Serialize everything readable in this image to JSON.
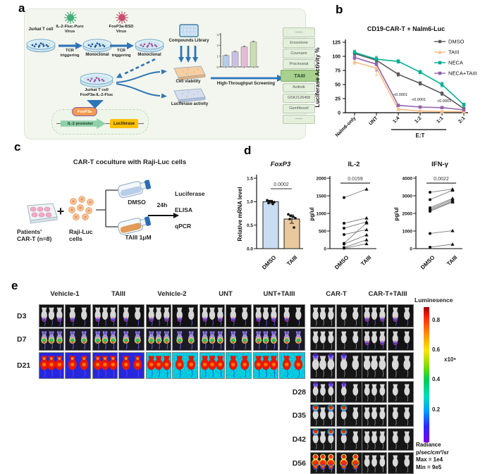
{
  "panel_labels": {
    "a": "a",
    "b": "b",
    "c": "c",
    "d": "d",
    "e": "e"
  },
  "panel_a": {
    "jurkat_label": "Jurkat T cell",
    "virus1_line1": "IL-2-Fluc-Puro",
    "virus1_line2": "Virus",
    "tcr_line1": "TCR",
    "tcr_line2": "triggering",
    "mono_label": "Monoclonal",
    "virus2_line1": "FoxP3a-BSD",
    "virus2_line2": "Virus",
    "cell2_line1": "Jurkat T cell",
    "cell2_line2": "FoxP3a-IL-2-Fluc",
    "construct_foxp3a": "FoxP3a",
    "construct_promoter": "IL-2 promoter",
    "construct_reporter": "Luciferase",
    "library_label": "Compounds Library",
    "viability_label": "Cell viability",
    "luciferase_label": "Luciferase activity",
    "hts_label": "High-Throughput Screening",
    "compound_list": [
      "——",
      "Enoxolone",
      "Coumarin",
      "Pracinostat",
      "TAIII",
      "Axitinib",
      "GSK2126458",
      "Gemfibrozil",
      "——"
    ],
    "highlighted_compound": "TAIII"
  },
  "chart_data": [
    {
      "id": "screening",
      "type": "bar",
      "values": [
        1.05,
        1.4,
        1.85,
        2.3
      ],
      "errors": [
        0.05,
        0.06,
        0.08,
        0.09
      ],
      "yticks": [
        0,
        1,
        2,
        3
      ],
      "ylim": [
        0,
        3
      ],
      "bar_colors": [
        "#b7cce8",
        "#cbc0e2",
        "#e4bcd8",
        "#c9ddb5"
      ]
    },
    {
      "id": "cd19",
      "type": "line",
      "title": "CD19-CAR-T + Nalm6-Luc",
      "ylabel": "Luciferase Activity %",
      "xlabel_group": "E:T",
      "categories": [
        "Nalm6-only",
        "UNT",
        "1:4",
        "1:2",
        "1:1",
        "2:1"
      ],
      "yticks": [
        0,
        25,
        50,
        75,
        100,
        125
      ],
      "ylim": [
        0,
        125
      ],
      "legend_position": "right-top",
      "series": [
        {
          "name": "DMSO",
          "color": "#58595b",
          "marker": "circle",
          "values": [
            105,
            93,
            68,
            52,
            34,
            7
          ],
          "errors": [
            3,
            4,
            3,
            3,
            3,
            2
          ]
        },
        {
          "name": "TAIII",
          "color": "#f6bd87",
          "marker": "triangle",
          "values": [
            90,
            79,
            6,
            3,
            2,
            2
          ],
          "errors": [
            4,
            13,
            2,
            1,
            1,
            1
          ]
        },
        {
          "name": "NECA",
          "color": "#00af93",
          "marker": "square",
          "values": [
            107,
            95,
            91,
            72,
            50,
            14
          ],
          "errors": [
            4,
            5,
            3,
            3,
            4,
            3
          ]
        },
        {
          "name": "NECA+TAIII",
          "color": "#9463ac",
          "marker": "square",
          "values": [
            98,
            86,
            13,
            10,
            9,
            5
          ],
          "errors": [
            4,
            12,
            2,
            1,
            1,
            1
          ]
        }
      ],
      "annotations": [
        {
          "text": "<0.0001",
          "ci": 2,
          "y": 30
        },
        {
          "text": "<0.0001",
          "ci": 3,
          "y": 21
        },
        {
          "text": "<0.0001",
          "ci": 4,
          "y": 19
        }
      ],
      "et_bracket": [
        "1:4",
        "1:2",
        "1:1"
      ]
    },
    {
      "id": "foxp3",
      "type": "bar",
      "title": "FoxP3",
      "ylabel": "Relative mRNA level",
      "categories": [
        "DMSO",
        "TAIII"
      ],
      "values": [
        1.0,
        0.63
      ],
      "errors": [
        0.03,
        0.09
      ],
      "bar_colors": [
        "#c9ddf2",
        "#e9c99c"
      ],
      "points": [
        [
          1.03,
          1.01,
          1.0,
          0.99,
          0.97,
          0.95
        ],
        [
          0.73,
          0.7,
          0.68,
          0.65,
          0.63,
          0.45
        ]
      ],
      "yticks": [
        0.0,
        0.5,
        1.0,
        1.5
      ],
      "ylim": [
        0,
        1.5
      ],
      "p_value": "0.0002"
    },
    {
      "id": "il2",
      "type": "paired-scatter",
      "title": "IL-2",
      "ylabel": "pg/ul",
      "categories": [
        "DMSO",
        "TAIII"
      ],
      "pairs": [
        [
          1450,
          1690
        ],
        [
          720,
          870
        ],
        [
          580,
          760
        ],
        [
          400,
          540
        ],
        [
          150,
          730
        ],
        [
          130,
          390
        ],
        [
          30,
          250
        ],
        [
          10,
          140
        ]
      ],
      "yticks": [
        0,
        500,
        1000,
        1500,
        2000
      ],
      "ylim": [
        0,
        2000
      ],
      "p_value": "0.0159"
    },
    {
      "id": "ifng",
      "type": "paired-scatter",
      "title": "IFN-γ",
      "ylabel": "pg/ul",
      "categories": [
        "DMSO",
        "TAIII"
      ],
      "pairs": [
        [
          3200,
          3380
        ],
        [
          2780,
          3320
        ],
        [
          2320,
          2850
        ],
        [
          2250,
          2780
        ],
        [
          2180,
          2700
        ],
        [
          2120,
          2650
        ],
        [
          860,
          1020
        ],
        [
          80,
          250
        ]
      ],
      "yticks": [
        0,
        1000,
        2000,
        3000,
        4000
      ],
      "ylim": [
        0,
        4000
      ],
      "p_value": "0.0022"
    }
  ],
  "panel_c": {
    "title": "CAR-T coculture with Raji-Luc cells",
    "plate_line1": "Patients'",
    "plate_line2": "CAR-T (n=8)",
    "plus": "+",
    "cells_line1": "Raji-Luc",
    "cells_line2": "cells",
    "flask1_label": "DMSO",
    "flask2_label": "TAIII 1μM",
    "duration_label": "24h",
    "readouts": [
      "Luciferase",
      "ELISA",
      "qPCR"
    ]
  },
  "panel_e": {
    "columns": [
      "Vehicle-1",
      "TAIII",
      "Vehicle-2",
      "UNT",
      "UNT+TAIII",
      "CAR-T",
      "CAR-T+TAIII"
    ],
    "rows": [
      {
        "label": "D3",
        "styles": [
          "dark_spots_blue",
          "dark_spots_blue",
          "dark_spots_blue",
          "dark_spots_blue",
          "dark_spots_blue",
          "dark_clean",
          "dark_spots_blue"
        ]
      },
      {
        "label": "D7",
        "styles": [
          "purple_green",
          "purple_green",
          "purple_green",
          "purple_green",
          "purple_green",
          "dark_clean",
          "dark_spots_blue"
        ]
      },
      {
        "label": "D21",
        "styles": [
          "blue_red",
          "blue_red",
          "noise_red",
          "noise_red",
          "noise_red",
          "dark_blue_head",
          "dark_clean"
        ]
      },
      {
        "label": "D28",
        "styles": [
          null,
          null,
          null,
          null,
          null,
          "dark_blue_head",
          "dark_clean"
        ]
      },
      {
        "label": "D35",
        "styles": [
          null,
          null,
          null,
          null,
          null,
          "dark_red_head",
          "dark_clean"
        ]
      },
      {
        "label": "D42",
        "styles": [
          null,
          null,
          null,
          null,
          null,
          "dark_red_head",
          "dark_clean"
        ]
      },
      {
        "label": "D56",
        "styles": [
          null,
          null,
          null,
          null,
          null,
          "dark_heavy",
          "dark_clean"
        ]
      }
    ],
    "colorbar": {
      "title": "Luminesence",
      "tick_labels": [
        "0.8",
        "0.6",
        "0.4",
        "0.2"
      ],
      "multiplier": "x10⁶",
      "footer": [
        "Radiance",
        "p/sec/cm²/sr",
        "Max = 1e4",
        "Min = 9e5"
      ]
    }
  },
  "colors": {
    "accent_blue": "#2e75b6",
    "dmso_gray": "#58595b",
    "taiii_orange": "#f6bd87",
    "neca_teal": "#00af93",
    "neca_taiii_purple": "#9463ac",
    "bar_dmso_blue": "#c9ddf2",
    "bar_taiii_tan": "#e9c99c",
    "list_highlight_green": "#a9d18e"
  }
}
